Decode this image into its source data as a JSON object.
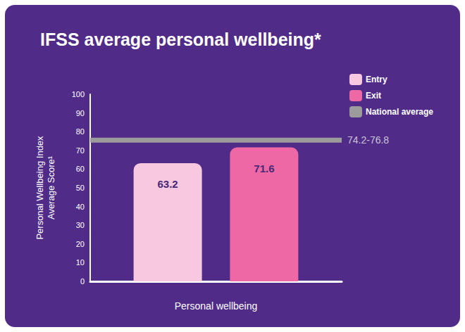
{
  "chart_data": {
    "type": "bar",
    "title": "IFSS average personal wellbeing*",
    "ylabel": "Personal Wellbeing Index\nAverage Score¹",
    "categories": [
      "Personal wellbeing"
    ],
    "series": [
      {
        "name": "Entry",
        "color": "#f7c8df",
        "values": [
          63.2
        ]
      },
      {
        "name": "Exit",
        "color": "#ee68a5",
        "values": [
          71.6
        ]
      }
    ],
    "reference_band": {
      "name": "National average",
      "low": 74.2,
      "high": 76.8,
      "label": "74.2-76.8",
      "color": "#9c9c9c"
    },
    "ylim": [
      0,
      100
    ],
    "yticks": [
      0,
      10,
      20,
      30,
      40,
      50,
      60,
      70,
      80,
      90,
      100
    ],
    "grid": false,
    "legend": "upper right",
    "data_labels": true
  }
}
